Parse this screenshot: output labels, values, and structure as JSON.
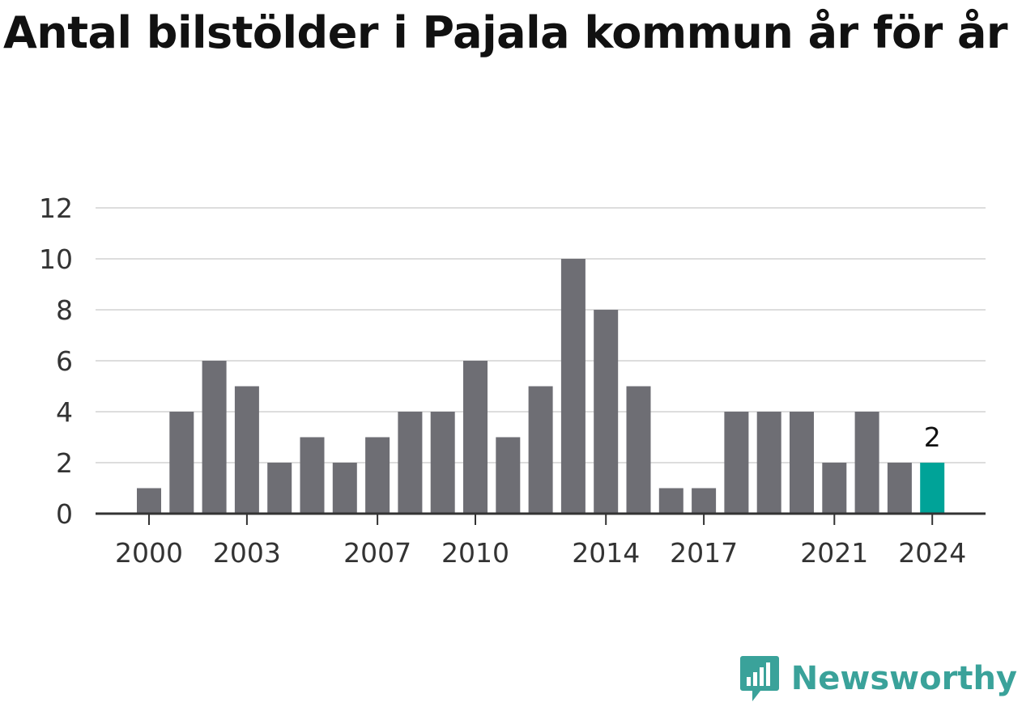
{
  "title": "Antal bilstölder i Pajala kommun år för år",
  "brand": {
    "name": "Newsworthy",
    "icon": "newsworthy-logo-icon",
    "color": "#3aa29a"
  },
  "colors": {
    "bar": "#6e6e74",
    "highlight": "#00a398",
    "grid": "#dddddd",
    "axis": "#333333"
  },
  "chart_data": {
    "type": "bar",
    "title": "Antal bilstölder i Pajala kommun år för år",
    "xlabel": "",
    "ylabel": "",
    "categories": [
      "2000",
      "2001",
      "2002",
      "2003",
      "2004",
      "2005",
      "2006",
      "2007",
      "2008",
      "2009",
      "2010",
      "2011",
      "2012",
      "2013",
      "2014",
      "2015",
      "2016",
      "2017",
      "2018",
      "2019",
      "2020",
      "2021",
      "2022",
      "2023",
      "2024"
    ],
    "values": [
      1,
      4,
      6,
      5,
      2,
      3,
      2,
      3,
      4,
      4,
      6,
      3,
      5,
      10,
      8,
      5,
      1,
      1,
      4,
      4,
      4,
      2,
      4,
      2,
      2
    ],
    "x_tick_labels": [
      "2000",
      "2003",
      "2007",
      "2010",
      "2014",
      "2017",
      "2021",
      "2024"
    ],
    "y_ticks": [
      0,
      2,
      4,
      6,
      8,
      10,
      12
    ],
    "ylim": [
      0,
      12
    ],
    "grid": true,
    "highlight": {
      "category": "2024",
      "label": "2"
    }
  }
}
